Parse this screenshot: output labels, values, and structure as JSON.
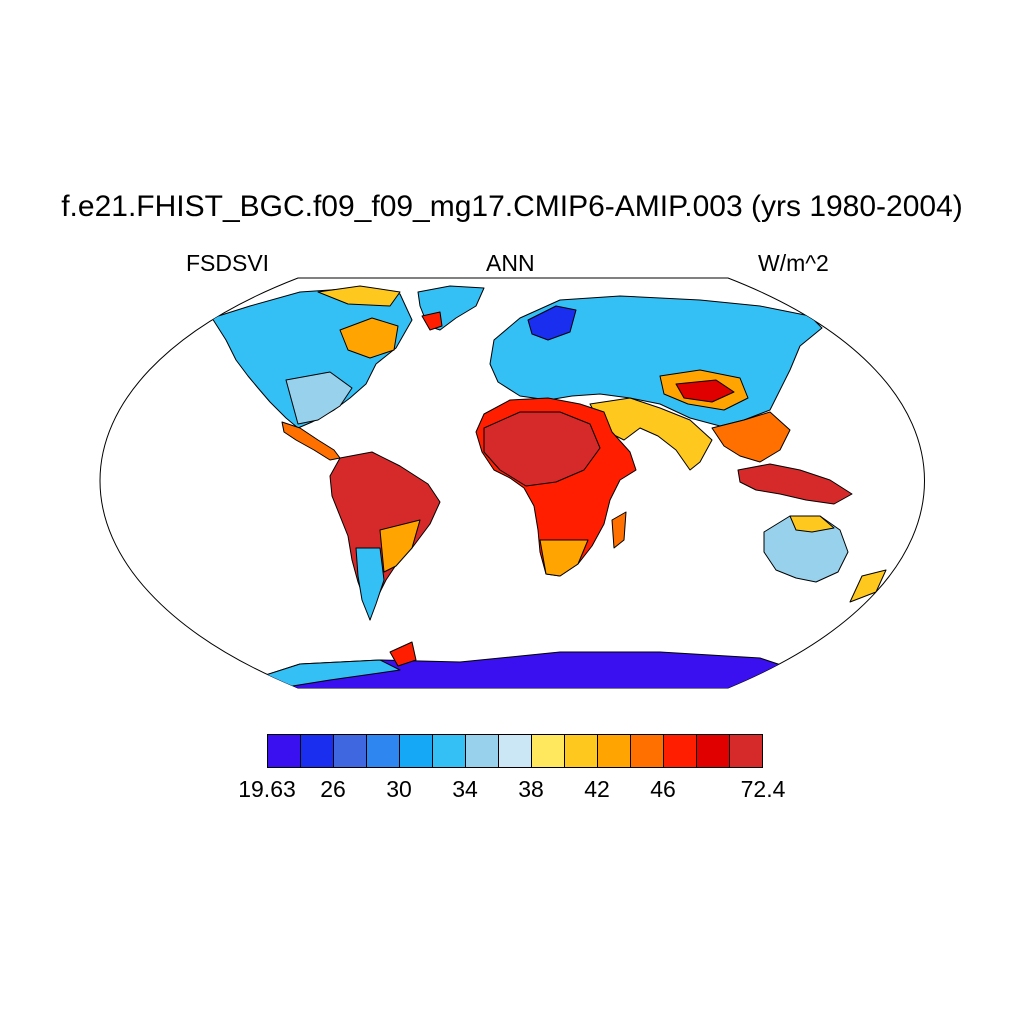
{
  "title": "f.e21.FHIST_BGC.f09_f09_mg17.CMIP6-AMIP.003 (yrs 1980-2004)",
  "left_label": "FSDSVI",
  "center_label": "ANN",
  "right_label": "W/m^2",
  "projection": "Robinson",
  "colorbar": {
    "colors": [
      "#3a10f0",
      "#1a2ef0",
      "#3f67e0",
      "#2e86f0",
      "#14a8f7",
      "#34c0f5",
      "#98d1ec",
      "#cbe6f5",
      "#ffe85e",
      "#ffc81e",
      "#ffa400",
      "#ff7000",
      "#ff1e00",
      "#e00000",
      "#d62a2a"
    ],
    "labels": [
      "19.63",
      "26",
      "30",
      "34",
      "38",
      "42",
      "46",
      "72.4"
    ]
  }
}
